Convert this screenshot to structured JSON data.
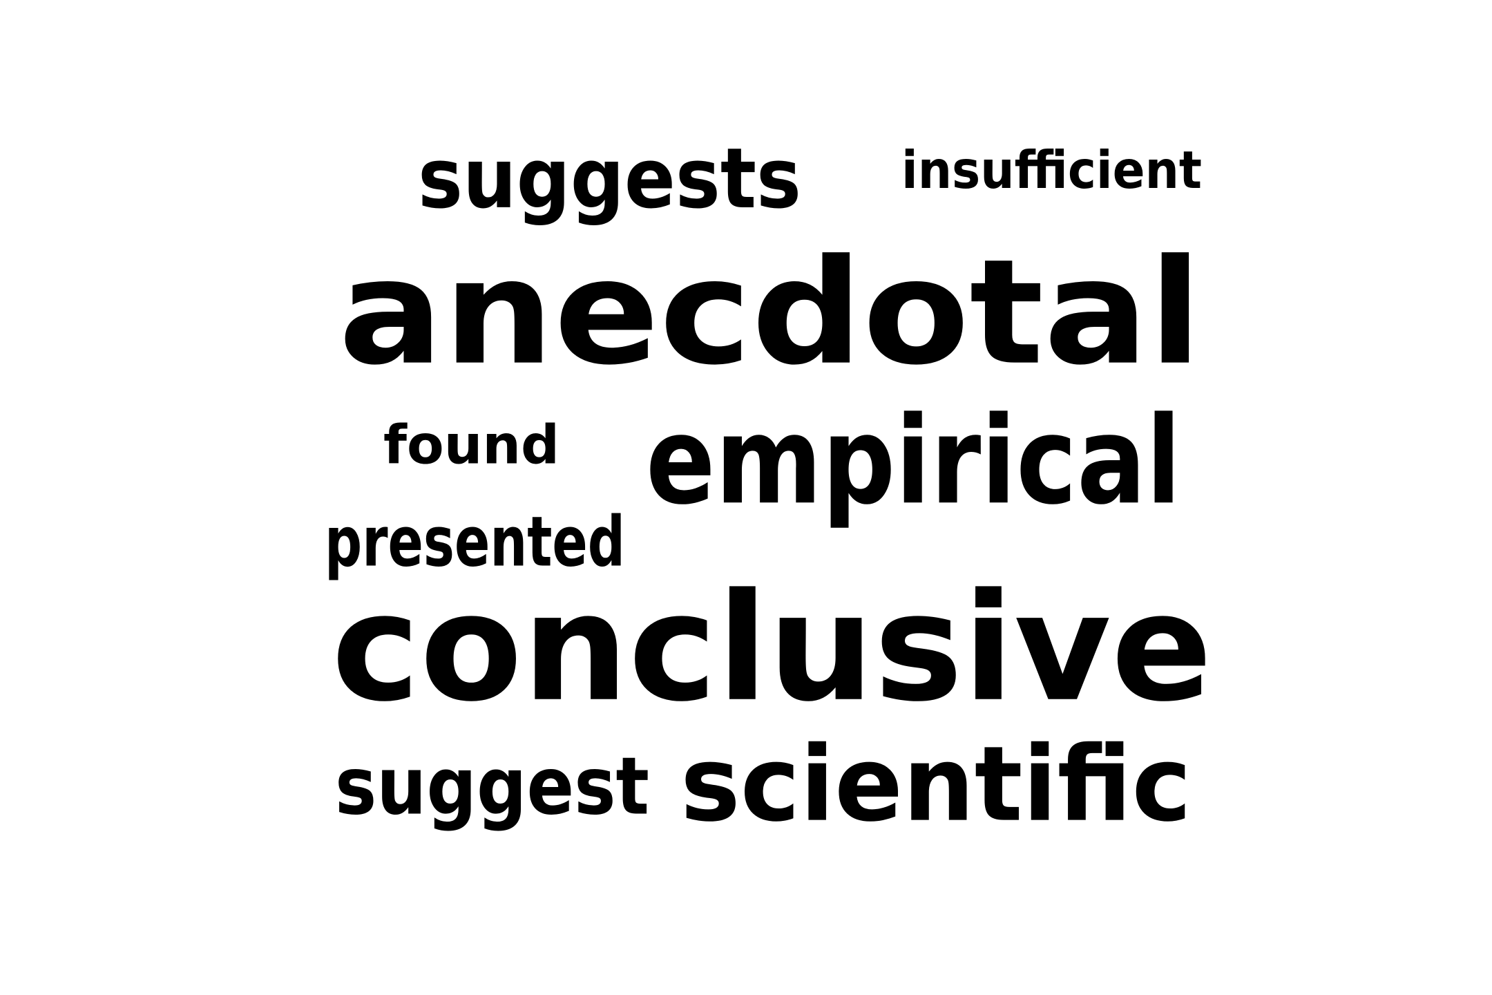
{
  "words": [
    {
      "id": "suggests",
      "text": "suggests"
    },
    {
      "id": "insufficient",
      "text": "insufficient"
    },
    {
      "id": "anecdotal",
      "text": "anecdotal"
    },
    {
      "id": "found",
      "text": "found"
    },
    {
      "id": "empirical",
      "text": "empirical"
    },
    {
      "id": "presented",
      "text": "presented"
    },
    {
      "id": "conclusive",
      "text": "conclusive"
    },
    {
      "id": "suggest",
      "text": "suggest"
    },
    {
      "id": "scientific",
      "text": "scientific"
    }
  ],
  "colors": {
    "background": "#ffffff",
    "text": "#000000"
  }
}
